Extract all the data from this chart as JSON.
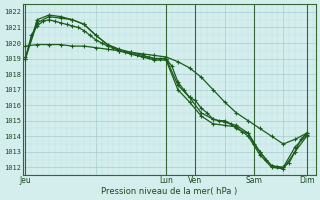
{
  "xlabel": "Pression niveau de la mer( hPa )",
  "bg_color": "#d4eeee",
  "grid_major_color": "#a8cccc",
  "grid_minor_color": "#bedddd",
  "line_color": "#1a5c1a",
  "marker_color": "#1a5c1a",
  "vline_color": "#336633",
  "ylim": [
    1011.5,
    1022.5
  ],
  "yticks": [
    1012,
    1013,
    1014,
    1015,
    1016,
    1017,
    1018,
    1019,
    1020,
    1021,
    1022
  ],
  "xtick_labels": [
    "Jeu",
    "",
    "Lun",
    "Ven",
    "",
    "Sam",
    "",
    "Dim"
  ],
  "xtick_positions": [
    0,
    12,
    24,
    29,
    34,
    39,
    44,
    48
  ],
  "xmin": -0.5,
  "xmax": 49.5,
  "vline_positions": [
    0,
    24,
    29,
    39,
    48
  ],
  "series": [
    {
      "x": [
        0,
        1,
        2,
        3,
        4,
        5,
        6,
        7,
        8,
        9,
        10,
        11,
        12,
        13,
        14,
        15,
        16,
        17,
        18,
        19,
        20,
        21,
        22,
        23,
        24,
        25,
        26,
        27,
        28,
        29,
        30,
        31,
        32,
        33,
        34,
        35,
        36,
        37,
        38,
        39,
        40,
        41,
        42,
        43,
        44,
        45,
        46,
        47,
        48
      ],
      "y": [
        1019.0,
        1020.5,
        1021.1,
        1021.4,
        1021.5,
        1021.4,
        1021.3,
        1021.2,
        1021.1,
        1021.0,
        1020.8,
        1020.5,
        1020.2,
        1020.0,
        1019.8,
        1019.7,
        1019.5,
        1019.4,
        1019.3,
        1019.2,
        1019.1,
        1019.1,
        1019.0,
        1019.0,
        1019.0,
        1018.5,
        1017.5,
        1017.0,
        1016.5,
        1016.3,
        1015.8,
        1015.5,
        1015.1,
        1015.0,
        1015.0,
        1014.8,
        1014.5,
        1014.3,
        1014.2,
        1013.5,
        1013.0,
        1012.5,
        1012.1,
        1012.0,
        1012.0,
        1012.3,
        1013.0,
        1013.8,
        1014.2
      ]
    },
    {
      "x": [
        0,
        2,
        4,
        6,
        8,
        10,
        12,
        14,
        16,
        18,
        20,
        22,
        24,
        26,
        28,
        30,
        32,
        34,
        36,
        38,
        40,
        42,
        44,
        46,
        48
      ],
      "y": [
        1019.0,
        1021.3,
        1021.7,
        1021.6,
        1021.5,
        1021.2,
        1020.5,
        1019.9,
        1019.6,
        1019.4,
        1019.2,
        1019.0,
        1019.0,
        1017.3,
        1016.5,
        1015.5,
        1015.1,
        1014.9,
        1014.7,
        1014.2,
        1013.0,
        1012.1,
        1012.0,
        1013.3,
        1014.1
      ]
    },
    {
      "x": [
        0,
        2,
        4,
        6,
        8,
        10,
        12,
        14,
        16,
        18,
        20,
        22,
        24,
        26,
        28,
        30,
        32,
        34,
        36,
        38,
        40,
        42,
        44,
        46,
        48
      ],
      "y": [
        1019.1,
        1021.5,
        1021.8,
        1021.7,
        1021.5,
        1021.2,
        1020.5,
        1019.9,
        1019.5,
        1019.3,
        1019.1,
        1018.9,
        1018.9,
        1017.0,
        1016.2,
        1015.3,
        1014.8,
        1014.7,
        1014.6,
        1014.0,
        1012.8,
        1012.0,
        1011.9,
        1013.0,
        1014.0
      ]
    },
    {
      "x": [
        0,
        2,
        4,
        6,
        8,
        10,
        12,
        14,
        16,
        18,
        20,
        22,
        24,
        26,
        28,
        30,
        32,
        34,
        36,
        38,
        40,
        42,
        44,
        46,
        48
      ],
      "y": [
        1019.8,
        1019.9,
        1019.9,
        1019.9,
        1019.8,
        1019.8,
        1019.7,
        1019.6,
        1019.5,
        1019.4,
        1019.3,
        1019.2,
        1019.1,
        1018.8,
        1018.4,
        1017.8,
        1017.0,
        1016.2,
        1015.5,
        1015.0,
        1014.5,
        1014.0,
        1013.5,
        1013.8,
        1014.2
      ]
    }
  ]
}
